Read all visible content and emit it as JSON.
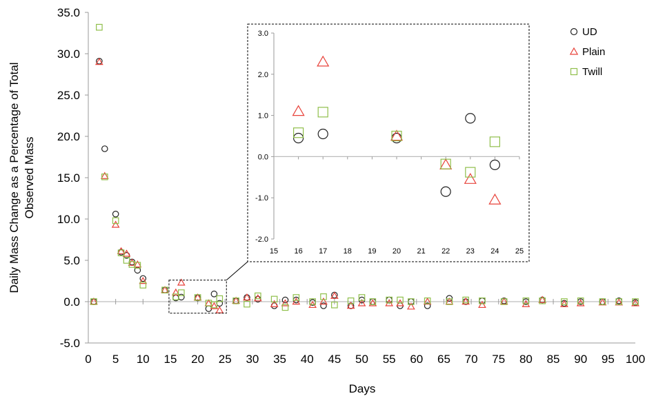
{
  "chart_data": {
    "type": "scatter",
    "title": "",
    "xlabel": "Days",
    "ylabel_line1": "Daily Mass Change as a Percentage of Total",
    "ylabel_line2": "Observed Mass",
    "xlim": [
      0,
      100
    ],
    "ylim": [
      -5,
      35
    ],
    "x_ticks": [
      "0",
      "5",
      "10",
      "15",
      "20",
      "25",
      "30",
      "35",
      "40",
      "45",
      "50",
      "55",
      "60",
      "65",
      "70",
      "75",
      "80",
      "85",
      "90",
      "95",
      "100"
    ],
    "y_ticks": [
      "35.0",
      "30.0",
      "25.0",
      "20.0",
      "15.0",
      "10.0",
      "5.0",
      "0.0",
      "-5.0"
    ],
    "grid": false,
    "legend_position": "top-right",
    "colors": {
      "UD": "#222222",
      "Plain": "#e8423a",
      "Twill": "#8fbf4a"
    },
    "series": [
      {
        "name": "UD",
        "marker": "circle",
        "points": [
          [
            1,
            0.0
          ],
          [
            2,
            29.1
          ],
          [
            3,
            18.5
          ],
          [
            5,
            10.6
          ],
          [
            6,
            6.0
          ],
          [
            7,
            5.6
          ],
          [
            8,
            4.8
          ],
          [
            9,
            3.8
          ],
          [
            10,
            2.8
          ],
          [
            14,
            1.4
          ],
          [
            16,
            0.45
          ],
          [
            17,
            0.55
          ],
          [
            20,
            0.45
          ],
          [
            22,
            -0.85
          ],
          [
            23,
            0.93
          ],
          [
            24,
            -0.2
          ],
          [
            27,
            0.1
          ],
          [
            29,
            0.5
          ],
          [
            31,
            0.3
          ],
          [
            34,
            -0.5
          ],
          [
            36,
            0.2
          ],
          [
            38,
            0.2
          ],
          [
            41,
            -0.1
          ],
          [
            43,
            -0.5
          ],
          [
            45,
            0.8
          ],
          [
            48,
            -0.5
          ],
          [
            50,
            0.2
          ],
          [
            52,
            0.0
          ],
          [
            55,
            0.2
          ],
          [
            57,
            -0.5
          ],
          [
            59,
            0.0
          ],
          [
            62,
            -0.5
          ],
          [
            66,
            0.4
          ],
          [
            69,
            0.0
          ],
          [
            72,
            0.1
          ],
          [
            76,
            0.1
          ],
          [
            80,
            0.0
          ],
          [
            83,
            0.2
          ],
          [
            87,
            -0.2
          ],
          [
            90,
            0.0
          ],
          [
            94,
            0.0
          ],
          [
            97,
            0.1
          ],
          [
            100,
            -0.1
          ]
        ]
      },
      {
        "name": "Plain",
        "marker": "triangle",
        "points": [
          [
            1,
            0.0
          ],
          [
            2,
            29.0
          ],
          [
            3,
            15.2
          ],
          [
            5,
            9.3
          ],
          [
            6,
            6.1
          ],
          [
            7,
            5.8
          ],
          [
            8,
            4.7
          ],
          [
            9,
            4.5
          ],
          [
            10,
            2.5
          ],
          [
            14,
            1.4
          ],
          [
            16,
            1.1
          ],
          [
            17,
            2.3
          ],
          [
            20,
            0.5
          ],
          [
            22,
            -0.2
          ],
          [
            23,
            -0.55
          ],
          [
            24,
            -1.05
          ],
          [
            27,
            0.1
          ],
          [
            29,
            0.5
          ],
          [
            31,
            0.4
          ],
          [
            34,
            -0.3
          ],
          [
            36,
            -0.2
          ],
          [
            38,
            0.0
          ],
          [
            41,
            -0.4
          ],
          [
            43,
            0.0
          ],
          [
            45,
            0.7
          ],
          [
            48,
            -0.5
          ],
          [
            50,
            -0.2
          ],
          [
            52,
            -0.2
          ],
          [
            55,
            -0.2
          ],
          [
            57,
            -0.2
          ],
          [
            59,
            -0.6
          ],
          [
            62,
            0.0
          ],
          [
            66,
            0.0
          ],
          [
            69,
            0.0
          ],
          [
            72,
            -0.4
          ],
          [
            76,
            0.0
          ],
          [
            80,
            -0.3
          ],
          [
            83,
            0.2
          ],
          [
            87,
            -0.3
          ],
          [
            90,
            -0.2
          ],
          [
            94,
            -0.1
          ],
          [
            97,
            -0.1
          ],
          [
            100,
            -0.2
          ]
        ]
      },
      {
        "name": "Twill",
        "marker": "square",
        "points": [
          [
            1,
            0.0
          ],
          [
            2,
            33.2
          ],
          [
            3,
            15.1
          ],
          [
            5,
            9.8
          ],
          [
            6,
            5.9
          ],
          [
            7,
            5.0
          ],
          [
            8,
            4.5
          ],
          [
            9,
            4.4
          ],
          [
            10,
            2.0
          ],
          [
            14,
            1.4
          ],
          [
            16,
            0.58
          ],
          [
            17,
            1.08
          ],
          [
            20,
            0.5
          ],
          [
            22,
            -0.18
          ],
          [
            23,
            -0.38
          ],
          [
            24,
            0.36
          ],
          [
            27,
            0.1
          ],
          [
            29,
            -0.3
          ],
          [
            31,
            0.7
          ],
          [
            34,
            0.3
          ],
          [
            36,
            -0.7
          ],
          [
            38,
            0.5
          ],
          [
            41,
            0.0
          ],
          [
            43,
            0.6
          ],
          [
            45,
            -0.4
          ],
          [
            48,
            0.1
          ],
          [
            50,
            0.5
          ],
          [
            52,
            0.0
          ],
          [
            55,
            0.2
          ],
          [
            57,
            0.2
          ],
          [
            59,
            0.0
          ],
          [
            62,
            0.1
          ],
          [
            66,
            0.0
          ],
          [
            69,
            0.2
          ],
          [
            72,
            0.1
          ],
          [
            76,
            0.0
          ],
          [
            80,
            0.1
          ],
          [
            83,
            0.1
          ],
          [
            87,
            0.0
          ],
          [
            90,
            0.1
          ],
          [
            94,
            0.0
          ],
          [
            97,
            0.0
          ],
          [
            100,
            0.0
          ]
        ]
      }
    ],
    "zoom_region": {
      "xlim": [
        15,
        25
      ],
      "ylim": [
        -1.4,
        2.6
      ]
    },
    "inset": {
      "xlim": [
        15,
        25
      ],
      "ylim": [
        -2.0,
        3.0
      ],
      "x_ticks": [
        "15",
        "16",
        "17",
        "18",
        "19",
        "20",
        "21",
        "22",
        "23",
        "24",
        "25"
      ],
      "y_ticks": [
        "3.0",
        "2.0",
        "1.0",
        "0.0",
        "-1.0",
        "-2.0"
      ]
    }
  }
}
